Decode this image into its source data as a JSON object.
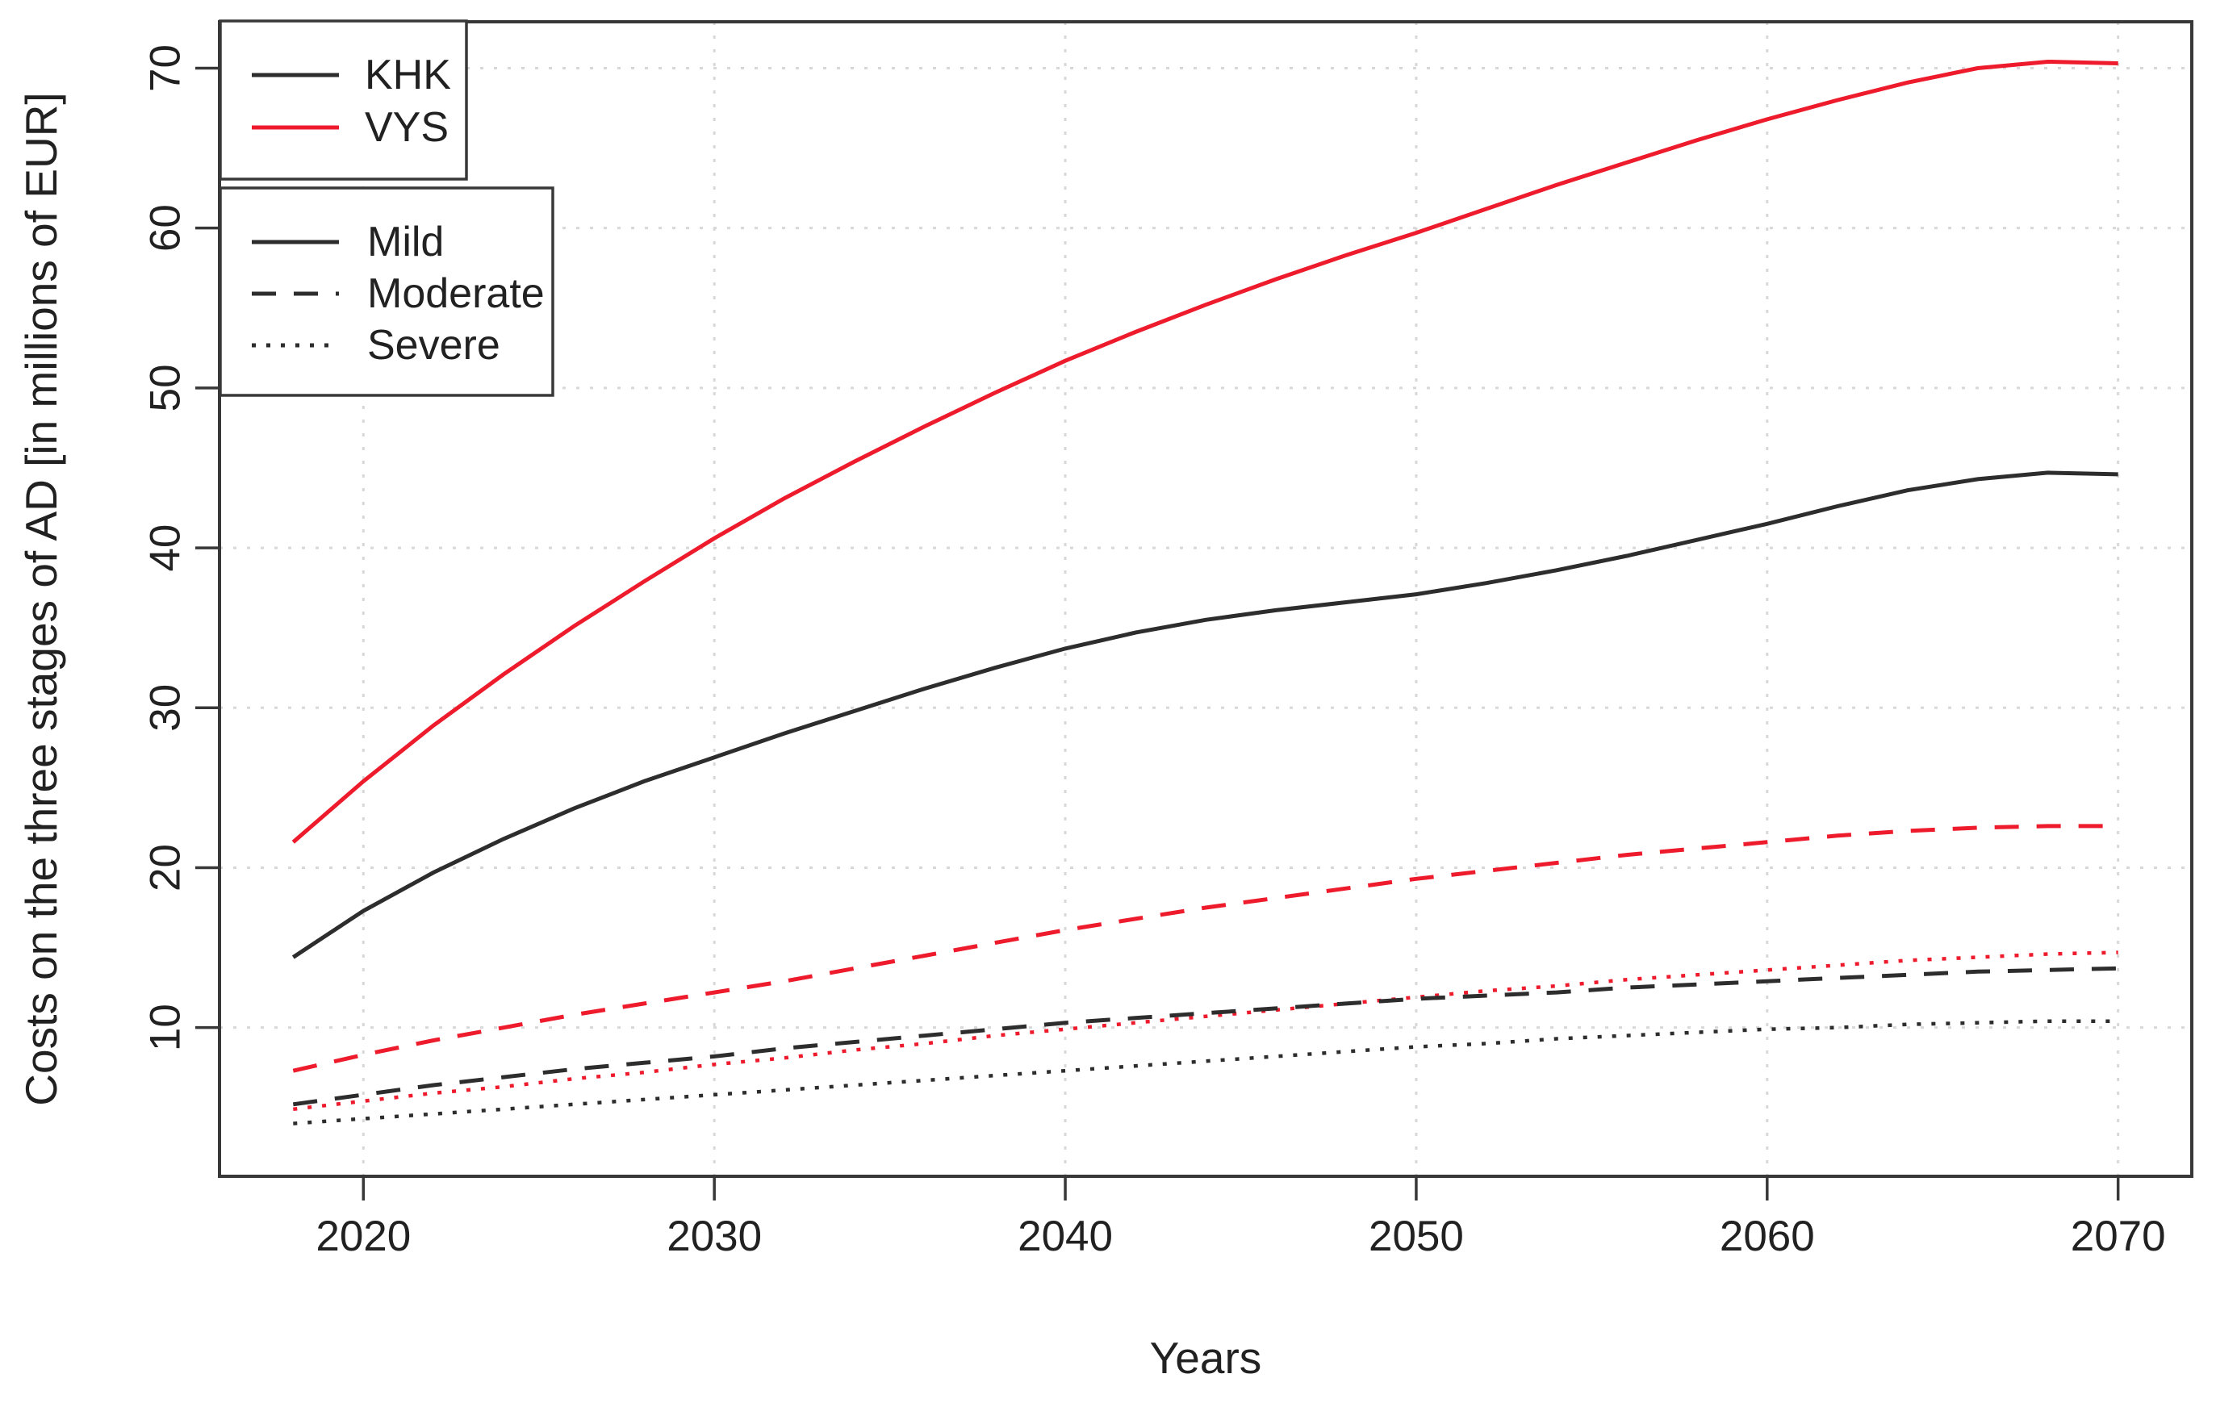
{
  "figure": {
    "background": "#ffffff",
    "xlabel": "Years",
    "ylabel": "Costs on the three stages of AD [in millions of EUR]"
  },
  "chart_data": {
    "type": "line",
    "title": "",
    "xlabel": "Years",
    "ylabel": "Costs on the three stages of AD [in millions of EUR]",
    "x_ticks": [
      2020,
      2030,
      2040,
      2050,
      2060,
      2070
    ],
    "y_ticks": [
      10,
      20,
      30,
      40,
      50,
      60,
      70
    ],
    "xlim": [
      2015.9,
      2072.1
    ],
    "ylim": [
      0.7,
      72.9
    ],
    "grid": "dotted",
    "legend_position": [
      "topleft-1",
      "topleft-2"
    ],
    "colors": {
      "khk": "#2d2d2d",
      "vys": "#ed1b2c",
      "grid": "#d8d8d8",
      "frame": "#383838",
      "text": "#212121"
    },
    "x": [
      2018,
      2020,
      2022,
      2024,
      2026,
      2028,
      2030,
      2032,
      2034,
      2036,
      2038,
      2040,
      2042,
      2044,
      2046,
      2048,
      2050,
      2052,
      2054,
      2056,
      2058,
      2060,
      2062,
      2064,
      2066,
      2068,
      2070
    ],
    "series": [
      {
        "name": "KHK Severe",
        "group": "KHK",
        "stage": "Severe",
        "color": "#2d2d2d",
        "dash": "dotted",
        "values": [
          4.0,
          4.3,
          4.6,
          4.9,
          5.2,
          5.5,
          5.8,
          6.1,
          6.4,
          6.7,
          7.0,
          7.3,
          7.6,
          7.9,
          8.2,
          8.5,
          8.8,
          9.0,
          9.3,
          9.5,
          9.7,
          9.9,
          10.0,
          10.2,
          10.3,
          10.4,
          10.4
        ]
      },
      {
        "name": "VYS Severe",
        "group": "VYS",
        "stage": "Severe",
        "color": "#ed1b2c",
        "dash": "dotted",
        "values": [
          4.9,
          5.4,
          5.9,
          6.3,
          6.8,
          7.2,
          7.7,
          8.1,
          8.6,
          9.0,
          9.5,
          9.9,
          10.3,
          10.7,
          11.1,
          11.5,
          11.9,
          12.3,
          12.6,
          13.0,
          13.3,
          13.6,
          13.9,
          14.2,
          14.4,
          14.6,
          14.7
        ]
      },
      {
        "name": "KHK Moderate",
        "group": "KHK",
        "stage": "Moderate",
        "color": "#2d2d2d",
        "dash": "dashed",
        "values": [
          5.2,
          5.8,
          6.4,
          6.9,
          7.4,
          7.8,
          8.2,
          8.7,
          9.1,
          9.5,
          9.9,
          10.3,
          10.6,
          10.9,
          11.2,
          11.5,
          11.8,
          12.0,
          12.2,
          12.5,
          12.7,
          12.9,
          13.1,
          13.3,
          13.5,
          13.6,
          13.7
        ]
      },
      {
        "name": "VYS Moderate",
        "group": "VYS",
        "stage": "Moderate",
        "color": "#ed1b2c",
        "dash": "dashed",
        "values": [
          7.3,
          8.3,
          9.2,
          10.0,
          10.8,
          11.5,
          12.2,
          12.9,
          13.7,
          14.5,
          15.3,
          16.1,
          16.8,
          17.5,
          18.1,
          18.7,
          19.3,
          19.8,
          20.3,
          20.8,
          21.2,
          21.6,
          22.0,
          22.3,
          22.5,
          22.6,
          22.6
        ]
      },
      {
        "name": "KHK Mild",
        "group": "KHK",
        "stage": "Mild",
        "color": "#2d2d2d",
        "dash": "solid",
        "values": [
          14.4,
          17.3,
          19.7,
          21.8,
          23.7,
          25.4,
          26.9,
          28.4,
          29.8,
          31.2,
          32.5,
          33.7,
          34.7,
          35.5,
          36.1,
          36.6,
          37.1,
          37.8,
          38.6,
          39.5,
          40.5,
          41.5,
          42.6,
          43.6,
          44.3,
          44.7,
          44.6
        ]
      },
      {
        "name": "VYS Mild",
        "group": "VYS",
        "stage": "Mild",
        "color": "#ed1b2c",
        "dash": "solid",
        "values": [
          21.6,
          25.4,
          28.9,
          32.1,
          35.1,
          37.9,
          40.6,
          43.1,
          45.4,
          47.6,
          49.7,
          51.7,
          53.5,
          55.2,
          56.8,
          58.3,
          59.7,
          61.2,
          62.7,
          64.1,
          65.5,
          66.8,
          68.0,
          69.1,
          70.0,
          70.4,
          70.3
        ]
      }
    ],
    "legends": [
      {
        "name": "legend-cohort",
        "items": [
          {
            "label": "KHK",
            "color": "#2d2d2d",
            "dash": "solid"
          },
          {
            "label": "VYS",
            "color": "#ed1b2c",
            "dash": "solid"
          }
        ]
      },
      {
        "name": "legend-stage",
        "items": [
          {
            "label": "Mild",
            "color": "#2d2d2d",
            "dash": "solid"
          },
          {
            "label": "Moderate",
            "color": "#2d2d2d",
            "dash": "dashed"
          },
          {
            "label": "Severe",
            "color": "#2d2d2d",
            "dash": "dotted"
          }
        ]
      }
    ]
  }
}
